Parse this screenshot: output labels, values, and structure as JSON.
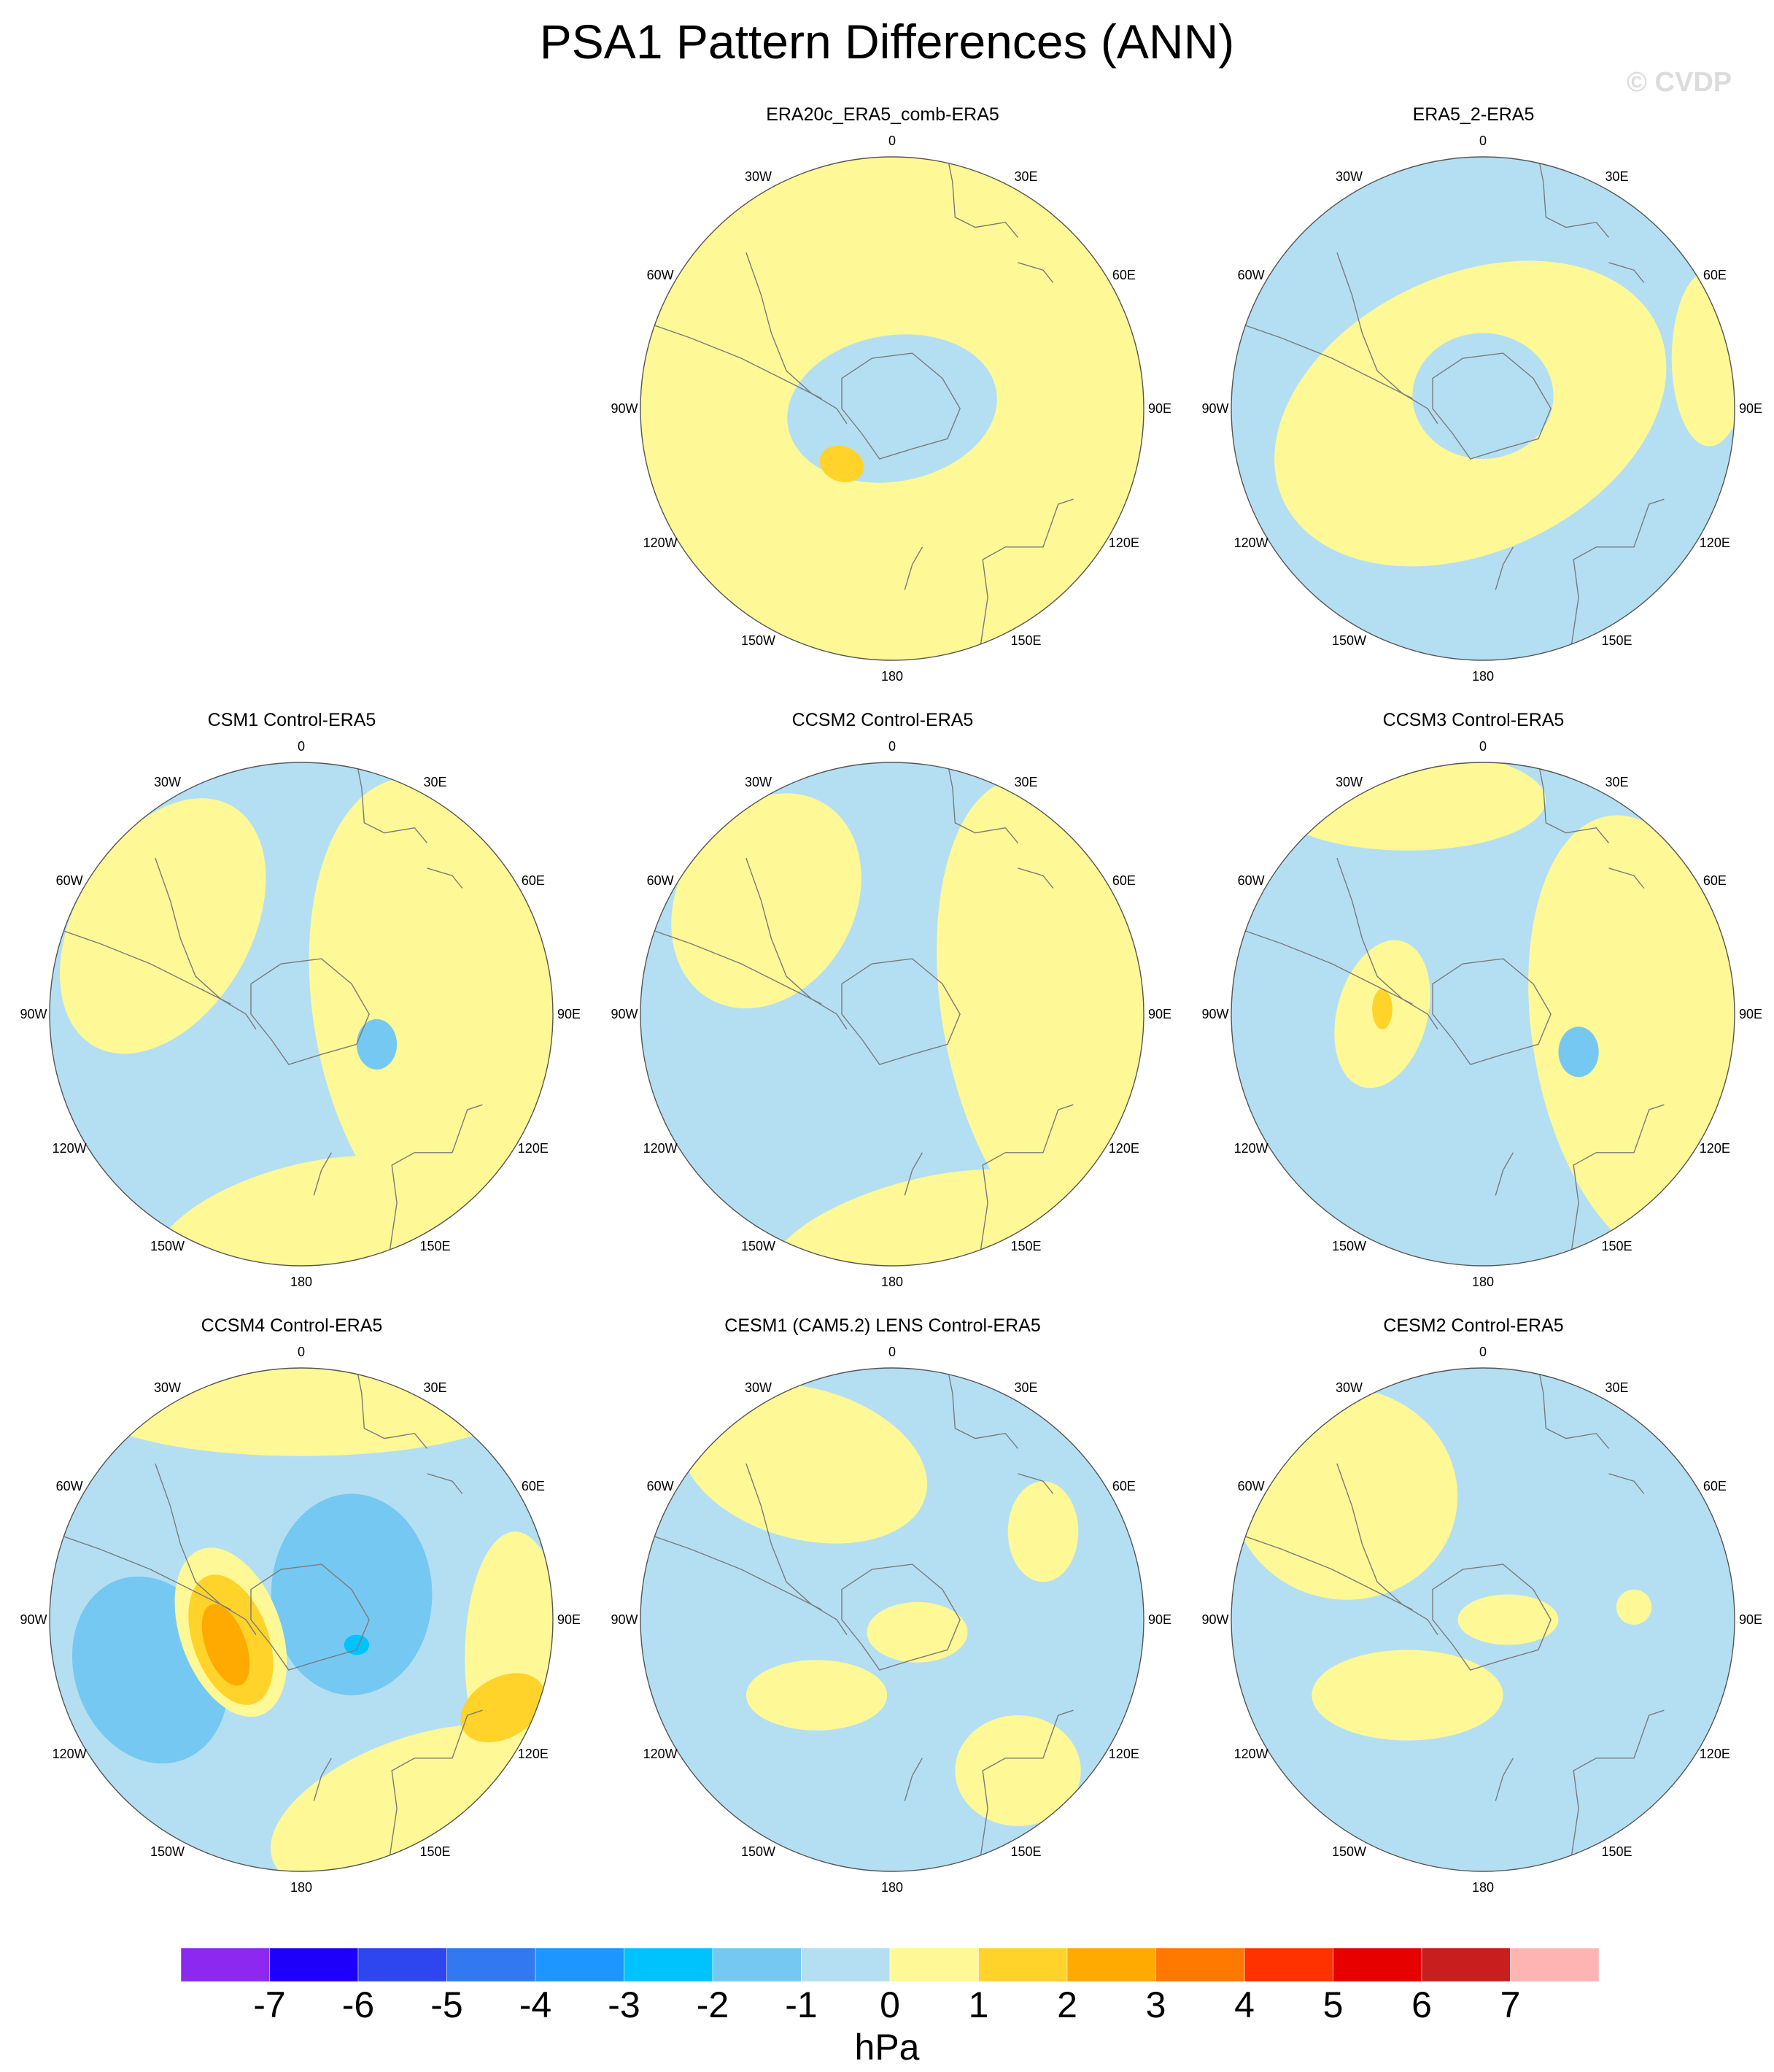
{
  "title": "PSA1 Pattern Differences (ANN)",
  "watermark": "© CVDP",
  "units": "hPa",
  "lon_labels": [
    "0",
    "30E",
    "60E",
    "90E",
    "120E",
    "150E",
    "180",
    "150W",
    "120W",
    "90W",
    "60W",
    "30W"
  ],
  "colors": {
    "-1_0": "#b4dff3",
    "0_1": "#fff896",
    "1_2": "#ffd32a",
    "2_3": "#ffaa00",
    "-2_-1": "#75c8f2",
    "-3_-2": "#00c3fe"
  },
  "colorbar": {
    "labels": [
      "-7",
      "-6",
      "-5",
      "-4",
      "-3",
      "-2",
      "-1",
      "0",
      "1",
      "2",
      "3",
      "4",
      "5",
      "6",
      "7"
    ],
    "colors": [
      "#8c28f0",
      "#1e00fa",
      "#2d46f0",
      "#3278f0",
      "#1e96ff",
      "#00c3fe",
      "#75c8f2",
      "#b4dff3",
      "#fff896",
      "#ffd32a",
      "#ffaa00",
      "#ff7800",
      "#ff3200",
      "#e60000",
      "#c81e1e",
      "#ffb4b4"
    ]
  },
  "panels": [
    {
      "title": "ERA20c_ERA5_comb-ERA5",
      "base": "0_1",
      "features": [
        [
          "-1_0",
          "ellipse",
          0.0,
          0.0,
          0.42,
          0.29,
          -10
        ],
        [
          "1_2",
          "ellipse",
          -0.2,
          0.22,
          0.09,
          0.07,
          20
        ]
      ]
    },
    {
      "title": "ERA5_2-ERA5",
      "base": "-1_0",
      "features": [
        [
          "0_1",
          "ellipse",
          -0.05,
          0.02,
          0.82,
          0.55,
          -25
        ],
        [
          "-1_0",
          "ellipse",
          0.0,
          -0.05,
          0.28,
          0.25,
          0
        ],
        [
          "-1_0",
          "ellipse",
          -0.72,
          -0.55,
          0.16,
          0.12,
          30
        ],
        [
          "0_1",
          "ellipse",
          0.9,
          -0.2,
          0.15,
          0.35,
          0
        ]
      ]
    },
    {
      "title": "CSM1 Control-ERA5",
      "base": "-1_0",
      "features": [
        [
          "0_1",
          "ellipse",
          0.55,
          0.0,
          0.5,
          0.95,
          -10
        ],
        [
          "0_1",
          "ellipse",
          -0.55,
          -0.35,
          0.35,
          0.55,
          30
        ],
        [
          "0_1",
          "ellipse",
          0.0,
          0.85,
          0.6,
          0.25,
          -15
        ],
        [
          "-2_-1",
          "ellipse",
          0.3,
          0.12,
          0.08,
          0.1,
          0
        ]
      ]
    },
    {
      "title": "CCSM2 Control-ERA5",
      "base": "-1_0",
      "features": [
        [
          "0_1",
          "ellipse",
          0.65,
          0.0,
          0.45,
          0.95,
          -10
        ],
        [
          "0_1",
          "ellipse",
          -0.5,
          -0.45,
          0.35,
          0.45,
          30
        ],
        [
          "0_1",
          "ellipse",
          0.1,
          0.88,
          0.6,
          0.22,
          -15
        ]
      ]
    },
    {
      "title": "CCSM3 Control-ERA5",
      "base": "-1_0",
      "features": [
        [
          "0_1",
          "ellipse",
          0.65,
          0.1,
          0.45,
          0.9,
          -10
        ],
        [
          "0_1",
          "ellipse",
          -0.4,
          0.0,
          0.18,
          0.3,
          15
        ],
        [
          "0_1",
          "ellipse",
          -0.3,
          -0.85,
          0.55,
          0.2,
          0
        ],
        [
          "1_2",
          "ellipse",
          -0.4,
          -0.02,
          0.04,
          0.08,
          0
        ],
        [
          "-2_-1",
          "ellipse",
          0.38,
          0.15,
          0.08,
          0.1,
          0
        ]
      ]
    },
    {
      "title": "CCSM4 Control-ERA5",
      "base": "-1_0",
      "features": [
        [
          "0_1",
          "ellipse",
          0.0,
          -0.85,
          0.85,
          0.2,
          0
        ],
        [
          "0_1",
          "ellipse",
          0.45,
          0.75,
          0.6,
          0.28,
          -20
        ],
        [
          "0_1",
          "ellipse",
          0.85,
          0.15,
          0.2,
          0.5,
          0
        ],
        [
          "-2_-1",
          "ellipse",
          -0.6,
          0.2,
          0.3,
          0.38,
          -20
        ],
        [
          "-2_-1",
          "ellipse",
          0.2,
          -0.1,
          0.32,
          0.4,
          0
        ],
        [
          "0_1",
          "ellipse",
          -0.28,
          0.05,
          0.2,
          0.35,
          -20
        ],
        [
          "1_2",
          "ellipse",
          -0.28,
          0.08,
          0.15,
          0.27,
          -20
        ],
        [
          "2_3",
          "ellipse",
          -0.3,
          0.1,
          0.08,
          0.17,
          -20
        ],
        [
          "1_2",
          "ellipse",
          0.8,
          0.35,
          0.18,
          0.12,
          -30
        ],
        [
          "-3_-2",
          "ellipse",
          0.22,
          0.1,
          0.05,
          0.04,
          0
        ]
      ]
    },
    {
      "title": "CESM1 (CAM5.2) LENS Control-ERA5",
      "base": "-1_0",
      "features": [
        [
          "0_1",
          "ellipse",
          -0.35,
          -0.62,
          0.5,
          0.3,
          15
        ],
        [
          "0_1",
          "ellipse",
          0.1,
          0.05,
          0.2,
          0.12,
          0
        ],
        [
          "0_1",
          "ellipse",
          -0.3,
          0.3,
          0.28,
          0.14,
          0
        ],
        [
          "0_1",
          "ellipse",
          0.6,
          -0.35,
          0.14,
          0.2,
          0
        ],
        [
          "0_1",
          "ellipse",
          0.5,
          0.6,
          0.25,
          0.22,
          0
        ]
      ]
    },
    {
      "title": "CESM2 Control-ERA5",
      "base": "-1_0",
      "features": [
        [
          "0_1",
          "ellipse",
          -0.55,
          -0.5,
          0.45,
          0.42,
          10
        ],
        [
          "0_1",
          "ellipse",
          -0.3,
          0.3,
          0.38,
          0.18,
          0
        ],
        [
          "0_1",
          "ellipse",
          0.1,
          0.0,
          0.2,
          0.1,
          0
        ],
        [
          "0_1",
          "ellipse",
          0.6,
          -0.05,
          0.07,
          0.07,
          0
        ]
      ]
    }
  ]
}
